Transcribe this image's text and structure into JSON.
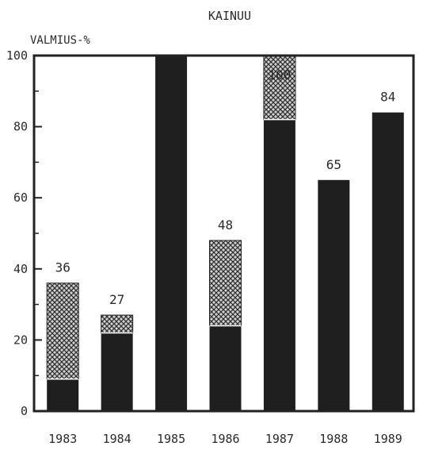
{
  "chart_data": {
    "type": "bar",
    "title": "KAINUU",
    "ylabel": "VALMIUS-%",
    "xlabel": "",
    "ylim": [
      0,
      100
    ],
    "yticks": [
      0,
      20,
      40,
      60,
      80,
      100
    ],
    "categories": [
      "1983",
      "1984",
      "1985",
      "1986",
      "1987",
      "1988",
      "1989"
    ],
    "series": [
      {
        "values": [
          9,
          22,
          100,
          24,
          82,
          65,
          84
        ]
      },
      {
        "values": [
          27,
          5,
          0,
          24,
          18,
          0,
          0
        ]
      }
    ],
    "totals": [
      36,
      27,
      100,
      48,
      100,
      65,
      84
    ],
    "data_labels": [
      "36",
      "27",
      "",
      "48",
      "100",
      "65",
      "84"
    ],
    "colors": {
      "solid": "#1f1f1f",
      "hatched": "#8a8a8a",
      "axis": "#222222"
    },
    "grid": false,
    "legend": "none"
  }
}
